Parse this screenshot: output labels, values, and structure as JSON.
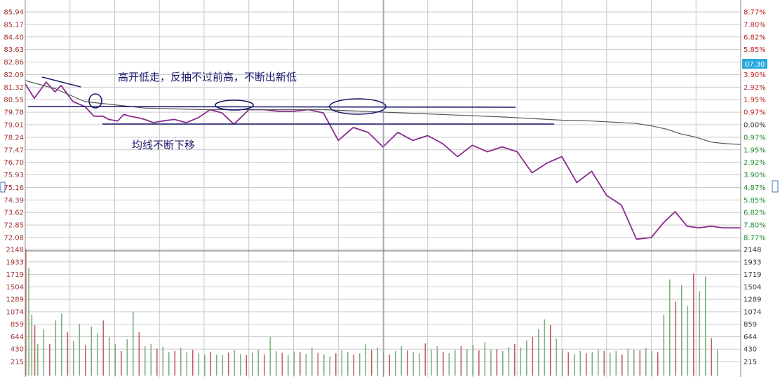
{
  "chart_data": [
    {
      "type": "line",
      "panel": "price",
      "title": "",
      "ylim": [
        72.0,
        85.94
      ],
      "y_ticks_left": [
        "85.94",
        "85.17",
        "84.40",
        "83.63",
        "82.86",
        "82.09",
        "81.32",
        "80.55",
        "79.78",
        "79.01",
        "78.24",
        "77.47",
        "76.70",
        "75.93",
        "75.16",
        "74.39",
        "73.62",
        "72.85",
        "72.08"
      ],
      "y_ticks_right": [
        "8.77%",
        "7.80%",
        "6.82%",
        "5.85%",
        "4.87%",
        "3.90%",
        "2.92%",
        "1.95%",
        "0.97%",
        "0.00%",
        "0.97%",
        "1.95%",
        "2.92%",
        "3.90%",
        "4.87%",
        "5.85%",
        "6.82%",
        "7.80%",
        "8.77%"
      ],
      "x_range": [
        0,
        240
      ],
      "series": [
        {
          "color": "#8a2b8e",
          "x": [
            0,
            3,
            7,
            10,
            12,
            16,
            20,
            23,
            26,
            28,
            31,
            33,
            35,
            38,
            40,
            43,
            46,
            50,
            54,
            58,
            62,
            66,
            70,
            75,
            80,
            85,
            90,
            95,
            100,
            105,
            110,
            115,
            120,
            125,
            130,
            135,
            140,
            145,
            150,
            155,
            160,
            165,
            170,
            175,
            180,
            185,
            190,
            195,
            200,
            205,
            210,
            214,
            218,
            222,
            226,
            230,
            234,
            238,
            240
          ],
          "values": [
            81.5,
            80.6,
            81.6,
            81.0,
            81.4,
            80.4,
            80.1,
            79.5,
            79.5,
            79.3,
            79.2,
            79.6,
            79.5,
            79.4,
            79.3,
            79.1,
            79.2,
            79.3,
            79.1,
            79.4,
            79.9,
            79.7,
            79.0,
            79.9,
            79.9,
            79.8,
            79.8,
            79.9,
            79.7,
            78.0,
            78.8,
            78.5,
            77.6,
            78.5,
            78.0,
            78.3,
            77.8,
            77.0,
            77.7,
            77.3,
            77.6,
            77.3,
            76.0,
            76.6,
            77.0,
            75.4,
            76.1,
            74.6,
            74.0,
            71.9,
            72.0,
            72.9,
            73.6,
            72.7,
            72.6,
            72.7,
            72.6,
            72.6,
            72.6
          ]
        },
        {
          "color": "#555555",
          "x": [
            0,
            10,
            20,
            40,
            60,
            80,
            100,
            120,
            140,
            160,
            170,
            180,
            190,
            200,
            205,
            210,
            215,
            220,
            225,
            230,
            235,
            240
          ],
          "values": [
            81.7,
            81.2,
            80.4,
            80.0,
            79.9,
            79.9,
            79.9,
            79.75,
            79.6,
            79.45,
            79.35,
            79.25,
            79.2,
            79.1,
            79.05,
            78.9,
            78.7,
            78.4,
            78.2,
            77.9,
            77.8,
            77.75
          ]
        }
      ]
    },
    {
      "type": "bar",
      "panel": "volume",
      "ylim": [
        0,
        2148
      ],
      "y_ticks_left": [
        "2148",
        "1933",
        "1719",
        "1504",
        "1289",
        "1074",
        "859",
        "644",
        "430",
        "215"
      ],
      "y_ticks_right": [
        "2148",
        "1933",
        "1719",
        "1504",
        "1289",
        "1074",
        "859",
        "644",
        "430",
        "215"
      ],
      "x_range": [
        0,
        240
      ],
      "x": [
        0,
        1,
        2,
        3,
        4,
        6,
        8,
        10,
        12,
        14,
        16,
        18,
        20,
        22,
        24,
        26,
        28,
        30,
        32,
        34,
        36,
        38,
        40,
        42,
        44,
        46,
        48,
        50,
        52,
        54,
        56,
        58,
        60,
        62,
        64,
        66,
        68,
        70,
        72,
        74,
        76,
        78,
        80,
        82,
        84,
        86,
        88,
        90,
        92,
        94,
        96,
        98,
        100,
        102,
        104,
        106,
        108,
        110,
        112,
        114,
        116,
        118,
        120,
        122,
        124,
        126,
        128,
        130,
        132,
        134,
        136,
        138,
        140,
        142,
        144,
        146,
        148,
        150,
        152,
        154,
        156,
        158,
        160,
        162,
        164,
        166,
        168,
        170,
        172,
        174,
        176,
        178,
        180,
        182,
        184,
        186,
        188,
        190,
        192,
        194,
        196,
        198,
        200,
        202,
        204,
        206,
        208,
        210,
        212,
        214,
        216,
        218,
        220,
        222,
        224,
        226,
        228,
        230,
        232,
        234,
        236,
        238
      ],
      "values": [
        1950,
        1600,
        800,
        620,
        300,
        550,
        300,
        700,
        820,
        500,
        350,
        640,
        280,
        600,
        480,
        700,
        420,
        300,
        180,
        380,
        850,
        500,
        260,
        300,
        220,
        250,
        160,
        180,
        240,
        160,
        200,
        140,
        120,
        170,
        120,
        110,
        150,
        190,
        130,
        110,
        150,
        200,
        120,
        420,
        180,
        150,
        110,
        170,
        160,
        130,
        240,
        150,
        120,
        90,
        140,
        190,
        160,
        120,
        140,
        300,
        200,
        240,
        150,
        120,
        180,
        260,
        190,
        160,
        140,
        310,
        200,
        260,
        170,
        140,
        200,
        260,
        210,
        280,
        190,
        330,
        200,
        210,
        180,
        250,
        300,
        240,
        360,
        420,
        550,
        720,
        620,
        390,
        210,
        160,
        130,
        180,
        140,
        160,
        200,
        180,
        150,
        180,
        120,
        220,
        200,
        190,
        230,
        180,
        160,
        800,
        1400,
        1020,
        1300,
        950,
        1500,
        1200,
        1450,
        400,
        200,
        0,
        0,
        0
      ]
    }
  ],
  "annotations": {
    "top_text": "高开低走，反抽不过前高，不断出新低",
    "bottom_text": "均线不断下移",
    "badge_right": "07.30"
  },
  "colors": {
    "price_line": "#8a2b8e",
    "avg_line": "#555555",
    "grid": "#c9c9c9",
    "axis_left_text": "#a03030",
    "axis_right_up": "#c02020",
    "axis_right_down": "#1a8a2a",
    "volume_bar": "#7fb07f",
    "volume_bar_red": "#c06060",
    "annotation": "#1a1a6e",
    "badge_bg": "#29a8e0"
  }
}
